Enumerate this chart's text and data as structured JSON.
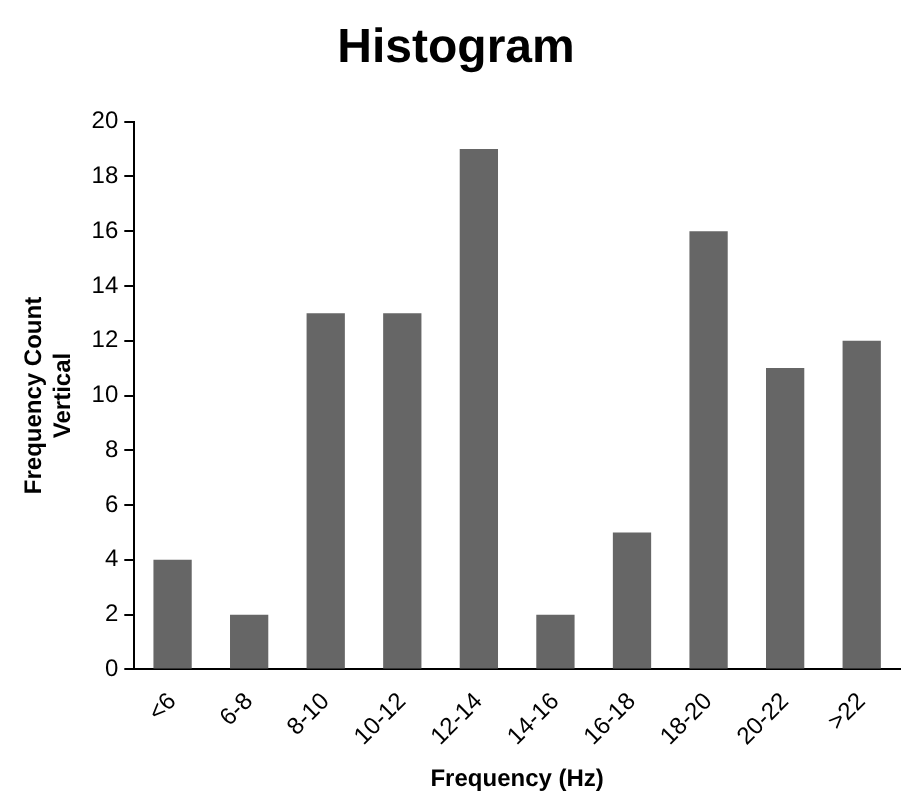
{
  "chart_data": {
    "type": "bar",
    "title": "Histogram",
    "xlabel": "Frequency (Hz)",
    "ylabel": "Frequency Count\nVertical",
    "categories": [
      "<6",
      "6-8",
      "8-10",
      "10-12",
      "12-14",
      "14-16",
      "16-18",
      "18-20",
      "20-22",
      ">22"
    ],
    "values": [
      4,
      2,
      13,
      13,
      19,
      2,
      5,
      16,
      11,
      12
    ],
    "color": "#666666",
    "ylim": [
      0,
      20
    ],
    "yticks": [
      0,
      2,
      4,
      6,
      8,
      10,
      12,
      14,
      16,
      18,
      20
    ],
    "grid": false,
    "legend": false
  }
}
